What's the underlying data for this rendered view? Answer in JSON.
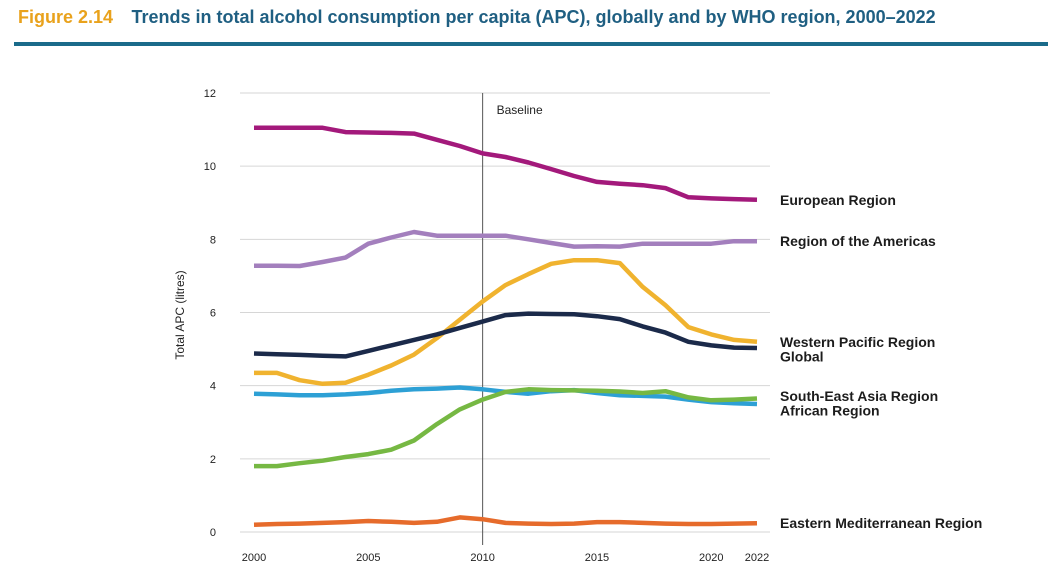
{
  "header": {
    "figure_number": "Figure 2.14",
    "title": "Trends in total alcohol consumption per capita (APC), globally and by WHO region, 2000–2022"
  },
  "chart_data": {
    "type": "line",
    "ylabel": "Total APC (litres)",
    "xlabel": "",
    "ylim": [
      0,
      12
    ],
    "xlim": [
      2000,
      2022
    ],
    "y_ticks": [
      "0",
      "2",
      "4",
      "6",
      "8",
      "10",
      "12"
    ],
    "x_ticks": [
      "2000",
      "2005",
      "2010",
      "2015",
      "2020",
      "2022"
    ],
    "grid": "horizontal",
    "legend": "inline-right",
    "annotation": {
      "label": "Baseline",
      "x": 2010
    },
    "x": [
      2000,
      2001,
      2002,
      2003,
      2004,
      2005,
      2006,
      2007,
      2008,
      2009,
      2010,
      2011,
      2012,
      2013,
      2014,
      2015,
      2016,
      2017,
      2018,
      2019,
      2020,
      2021,
      2022
    ],
    "series": [
      {
        "name": "European Region",
        "color": "#a3197b",
        "values": [
          11.05,
          11.05,
          11.05,
          11.05,
          10.93,
          10.92,
          10.91,
          10.89,
          10.72,
          10.55,
          10.35,
          10.25,
          10.1,
          9.92,
          9.73,
          9.57,
          9.52,
          9.48,
          9.4,
          9.15,
          9.12,
          9.1,
          9.08
        ]
      },
      {
        "name": "Region of the Americas",
        "color": "#a37fbd",
        "values": [
          7.28,
          7.28,
          7.27,
          7.38,
          7.5,
          7.88,
          8.05,
          8.2,
          8.1,
          8.1,
          8.1,
          8.1,
          8.0,
          7.9,
          7.8,
          7.81,
          7.8,
          7.88,
          7.88,
          7.88,
          7.88,
          7.95,
          7.95
        ]
      },
      {
        "name": "Western Pacific Region",
        "color": "#f0b32f",
        "values": [
          4.35,
          4.35,
          4.15,
          4.05,
          4.08,
          4.3,
          4.55,
          4.85,
          5.3,
          5.8,
          6.3,
          6.75,
          7.05,
          7.33,
          7.43,
          7.43,
          7.35,
          6.7,
          6.2,
          5.6,
          5.4,
          5.25,
          5.2
        ]
      },
      {
        "name": "Global",
        "color": "#1b2a4a",
        "values": [
          4.88,
          4.86,
          4.84,
          4.82,
          4.8,
          4.95,
          5.1,
          5.25,
          5.4,
          5.58,
          5.75,
          5.93,
          5.97,
          5.96,
          5.95,
          5.9,
          5.82,
          5.62,
          5.45,
          5.2,
          5.1,
          5.04,
          5.03
        ]
      },
      {
        "name": "South-East Asia Region",
        "color": "#2da0d5",
        "values": [
          3.78,
          3.76,
          3.74,
          3.74,
          3.76,
          3.8,
          3.86,
          3.9,
          3.92,
          3.95,
          3.9,
          3.83,
          3.78,
          3.85,
          3.88,
          3.8,
          3.74,
          3.72,
          3.7,
          3.62,
          3.55,
          3.52,
          3.5
        ]
      },
      {
        "name": "African Region",
        "color": "#76b843",
        "values": [
          1.8,
          1.8,
          1.88,
          1.95,
          2.05,
          2.13,
          2.25,
          2.5,
          2.95,
          3.35,
          3.62,
          3.83,
          3.9,
          3.88,
          3.87,
          3.86,
          3.84,
          3.8,
          3.85,
          3.68,
          3.6,
          3.62,
          3.65
        ]
      },
      {
        "name": "Eastern Mediterranean Region",
        "color": "#e66b2b",
        "values": [
          0.2,
          0.22,
          0.23,
          0.25,
          0.27,
          0.3,
          0.28,
          0.25,
          0.28,
          0.4,
          0.35,
          0.25,
          0.23,
          0.22,
          0.23,
          0.27,
          0.27,
          0.25,
          0.23,
          0.22,
          0.22,
          0.23,
          0.24
        ]
      }
    ],
    "series_label_lines": [
      {
        "text": "European Region",
        "at_value": 9.08
      },
      {
        "text": "Region of the Americas",
        "at_value": 7.95
      },
      {
        "text": "Western Pacific Region",
        "at_value": 5.2
      },
      {
        "text": "Global",
        "at_value": 4.8
      },
      {
        "text": "South-East Asia Region",
        "at_value": 3.72
      },
      {
        "text": "African Region",
        "at_value": 3.32
      },
      {
        "text": "Eastern Mediterranean Region",
        "at_value": 0.24
      }
    ]
  }
}
